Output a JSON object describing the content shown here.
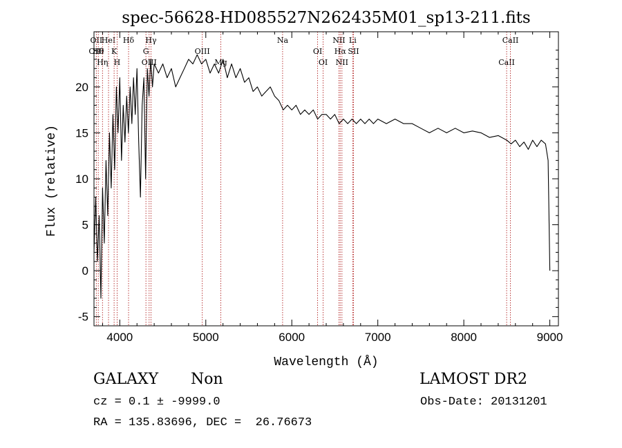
{
  "chart_data": {
    "type": "line",
    "title": "spec-56628-HD085527N262435M01_sp13-211.fits",
    "xlabel": "Wavelength (Å)",
    "ylabel": "Flux (relative)",
    "xlim": [
      3700,
      9100
    ],
    "ylim": [
      -6,
      26
    ],
    "xticks": [
      4000,
      5000,
      6000,
      7000,
      8000,
      9000
    ],
    "yticks": [
      -5,
      0,
      5,
      10,
      15,
      20
    ],
    "grid": false,
    "series": [
      {
        "color": "#000000",
        "points": [
          [
            3700,
            2
          ],
          [
            3720,
            8
          ],
          [
            3740,
            1
          ],
          [
            3760,
            6
          ],
          [
            3780,
            -3
          ],
          [
            3800,
            9
          ],
          [
            3820,
            3
          ],
          [
            3840,
            12
          ],
          [
            3860,
            6
          ],
          [
            3880,
            15
          ],
          [
            3900,
            9
          ],
          [
            3920,
            17
          ],
          [
            3940,
            11
          ],
          [
            3960,
            20
          ],
          [
            3980,
            15
          ],
          [
            4000,
            21
          ],
          [
            4020,
            12
          ],
          [
            4040,
            18
          ],
          [
            4060,
            14
          ],
          [
            4080,
            19
          ],
          [
            4100,
            15
          ],
          [
            4120,
            20
          ],
          [
            4140,
            16
          ],
          [
            4160,
            21
          ],
          [
            4180,
            17
          ],
          [
            4200,
            22
          ],
          [
            4220,
            14
          ],
          [
            4240,
            8
          ],
          [
            4260,
            18
          ],
          [
            4280,
            21
          ],
          [
            4300,
            10
          ],
          [
            4320,
            22
          ],
          [
            4340,
            19
          ],
          [
            4360,
            23
          ],
          [
            4380,
            20
          ],
          [
            4400,
            22.5
          ],
          [
            4450,
            21.5
          ],
          [
            4500,
            22.5
          ],
          [
            4550,
            21
          ],
          [
            4600,
            22
          ],
          [
            4650,
            20
          ],
          [
            4700,
            21
          ],
          [
            4750,
            22
          ],
          [
            4800,
            23
          ],
          [
            4850,
            22.5
          ],
          [
            4900,
            23.5
          ],
          [
            4950,
            22.5
          ],
          [
            5000,
            23
          ],
          [
            5050,
            21.5
          ],
          [
            5100,
            22.5
          ],
          [
            5150,
            21.5
          ],
          [
            5200,
            23
          ],
          [
            5250,
            21
          ],
          [
            5300,
            22.5
          ],
          [
            5350,
            21
          ],
          [
            5400,
            22
          ],
          [
            5450,
            20.5
          ],
          [
            5500,
            21
          ],
          [
            5550,
            19.5
          ],
          [
            5600,
            20
          ],
          [
            5650,
            19
          ],
          [
            5700,
            19.5
          ],
          [
            5750,
            20
          ],
          [
            5800,
            19
          ],
          [
            5850,
            18.5
          ],
          [
            5900,
            17.5
          ],
          [
            5950,
            18
          ],
          [
            6000,
            17.5
          ],
          [
            6050,
            18
          ],
          [
            6100,
            17
          ],
          [
            6150,
            17.5
          ],
          [
            6200,
            17
          ],
          [
            6250,
            17.5
          ],
          [
            6300,
            16.5
          ],
          [
            6350,
            17
          ],
          [
            6400,
            17
          ],
          [
            6450,
            16.5
          ],
          [
            6500,
            17
          ],
          [
            6550,
            16
          ],
          [
            6600,
            16.5
          ],
          [
            6650,
            16
          ],
          [
            6700,
            16.5
          ],
          [
            6750,
            16
          ],
          [
            6800,
            16.5
          ],
          [
            6850,
            16
          ],
          [
            6900,
            16.5
          ],
          [
            6950,
            16
          ],
          [
            7000,
            16.5
          ],
          [
            7100,
            16
          ],
          [
            7200,
            16.5
          ],
          [
            7300,
            16
          ],
          [
            7400,
            16
          ],
          [
            7500,
            15.5
          ],
          [
            7600,
            15
          ],
          [
            7700,
            15.5
          ],
          [
            7800,
            15
          ],
          [
            7900,
            15.5
          ],
          [
            8000,
            15
          ],
          [
            8100,
            15.2
          ],
          [
            8200,
            15
          ],
          [
            8300,
            14.5
          ],
          [
            8400,
            14.7
          ],
          [
            8500,
            14.2
          ],
          [
            8550,
            13.8
          ],
          [
            8600,
            14.2
          ],
          [
            8650,
            13.5
          ],
          [
            8700,
            14
          ],
          [
            8750,
            13.2
          ],
          [
            8800,
            14.2
          ],
          [
            8850,
            13.5
          ],
          [
            8900,
            14.2
          ],
          [
            8950,
            13.8
          ],
          [
            8980,
            12
          ],
          [
            9000,
            0
          ]
        ]
      }
    ],
    "lines": [
      {
        "x": 3727,
        "labels": [
          "OII",
          "OIII"
        ]
      },
      {
        "x": 3750,
        "labels": [
          "Hθ"
        ]
      },
      {
        "x": 3799,
        "labels": [
          "Hη"
        ]
      },
      {
        "x": 3869,
        "labels": [
          "HeI"
        ]
      },
      {
        "x": 3934,
        "labels": [
          "K"
        ]
      },
      {
        "x": 3969,
        "labels": [
          "H"
        ]
      },
      {
        "x": 4102,
        "labels": [
          "Hδ"
        ]
      },
      {
        "x": 4304,
        "labels": [
          "G"
        ]
      },
      {
        "x": 4341,
        "labels": [
          "OIII"
        ]
      },
      {
        "x": 4363,
        "labels": [
          "Hγ"
        ]
      },
      {
        "x": 4959,
        "labels": [
          "OIII"
        ]
      },
      {
        "x": 5175,
        "labels": [
          "Mg"
        ]
      },
      {
        "x": 5893,
        "labels": [
          "Na"
        ]
      },
      {
        "x": 6300,
        "labels": [
          "OI"
        ]
      },
      {
        "x": 6364,
        "labels": [
          "OI"
        ]
      },
      {
        "x": 6548,
        "labels": [
          "NII"
        ]
      },
      {
        "x": 6563,
        "labels": [
          "Hα"
        ]
      },
      {
        "x": 6583,
        "labels": [
          "NII"
        ]
      },
      {
        "x": 6708,
        "labels": [
          "Li"
        ]
      },
      {
        "x": 6717,
        "labels": [
          "SII"
        ]
      },
      {
        "x": 8498,
        "labels": [
          "CaII"
        ]
      },
      {
        "x": 8542,
        "labels": [
          "CaII"
        ]
      }
    ]
  },
  "info": {
    "class": "GALAXY",
    "subclass": "Non",
    "survey": "LAMOST DR2",
    "cz": "cz = 0.1 ± -9999.0",
    "obs_date": "Obs-Date: 20131201",
    "coords": "RA = 135.83696, DEC =  26.76673"
  }
}
